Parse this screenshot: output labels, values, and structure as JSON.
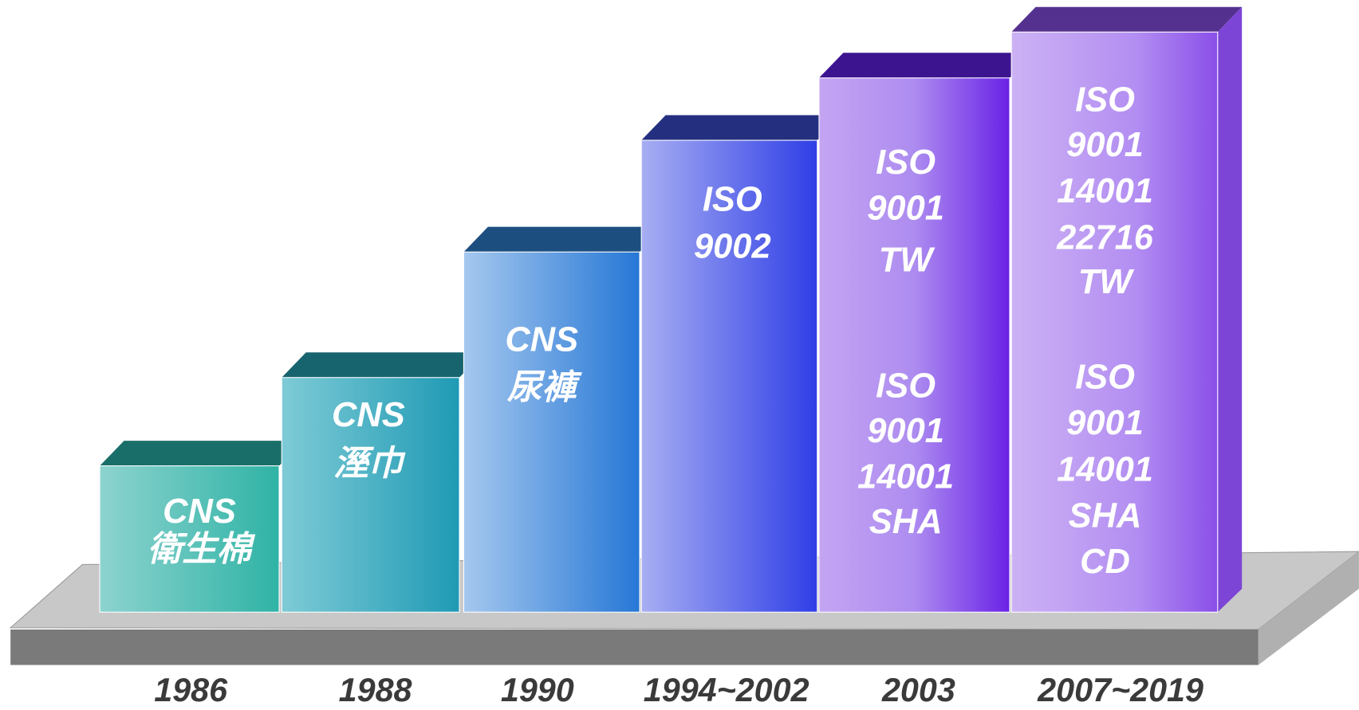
{
  "columns": [
    {
      "year": "1986",
      "groups": [
        [
          "CNS",
          "衛生棉"
        ]
      ]
    },
    {
      "year": "1988",
      "groups": [
        [
          "CNS",
          "溼巾"
        ]
      ]
    },
    {
      "year": "1990",
      "groups": [
        [
          "CNS",
          "尿褲"
        ]
      ]
    },
    {
      "year": "1994~2002",
      "groups": [
        [
          "ISO",
          "9002"
        ]
      ]
    },
    {
      "year": "2003",
      "groups": [
        [
          "ISO",
          "9001",
          "TW"
        ],
        [
          "ISO",
          "9001",
          "14001",
          "SHA"
        ]
      ]
    },
    {
      "year": "2007~2019",
      "groups": [
        [
          "ISO",
          "9001",
          "14001",
          "22716",
          "TW"
        ],
        [
          "ISO",
          "9001",
          "14001",
          "SHA",
          "CD"
        ]
      ]
    }
  ]
}
